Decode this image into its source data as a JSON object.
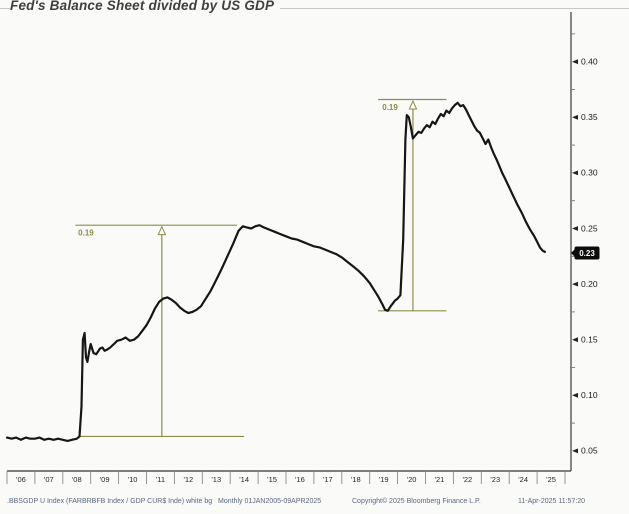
{
  "title": "Fed's Balance Sheet divided by US GDP",
  "footer": {
    "source_line": ".BBSGDP U Index (FARBRBFB Index / GDP CUR$ Inde) white bg",
    "periodicity": "Monthly 01JAN2005-09APR2025",
    "copyright": "Copyright© 2025 Bloomberg Finance L.P.",
    "timestamp": "11-Apr-2025 11:57:20"
  },
  "colors": {
    "background": "#fafaf8",
    "curve": "#161616",
    "annotation": "#8e8e4a",
    "axis": "#555555",
    "separator": "#8a8a8a",
    "x_label": "#1c2430",
    "y_label": "#1a1a1a",
    "badge_bg": "#0b0b0b",
    "badge_text": "#ffffff",
    "footer_text": "#5a6880"
  },
  "chart_data": {
    "type": "line",
    "title": "Fed's Balance Sheet divided by US GDP",
    "xlabel": "",
    "ylabel": "",
    "grid": false,
    "legend": "none",
    "x_axis": {
      "labels": [
        "'06",
        "'07",
        "'08",
        "'09",
        "'10",
        "'11",
        "'12",
        "'13",
        "'14",
        "'15",
        "'16",
        "'17",
        "'18",
        "'19",
        "'20",
        "'21",
        "'22",
        "'23",
        "'24",
        "'25"
      ],
      "start_year": 2006,
      "end_year": 2026
    },
    "y_axis": {
      "side": "right",
      "range": [
        0.04,
        0.43
      ],
      "major_ticks": [
        0.4,
        0.35,
        0.3,
        0.25,
        0.2,
        0.15,
        0.1,
        0.05
      ],
      "major_tick_labels": [
        "0.40",
        "0.35",
        "0.30",
        "0.25",
        "0.20",
        "0.15",
        "0.10",
        "0.05"
      ],
      "minor_ticks": [
        0.425,
        0.375,
        0.325,
        0.275,
        0.225,
        0.175,
        0.125,
        0.075
      ]
    },
    "last_value": {
      "label": "0.23",
      "value": 0.228
    },
    "series": [
      {
        "name": ".BBSGDP U Index (FARBRBFB Index / GDP CUR$ Index)",
        "points": [
          [
            2006.0,
            0.062
          ],
          [
            2006.17,
            0.061
          ],
          [
            2006.33,
            0.062
          ],
          [
            2006.5,
            0.06
          ],
          [
            2006.67,
            0.062
          ],
          [
            2006.83,
            0.061
          ],
          [
            2007.0,
            0.061
          ],
          [
            2007.17,
            0.062
          ],
          [
            2007.33,
            0.06
          ],
          [
            2007.5,
            0.061
          ],
          [
            2007.67,
            0.06
          ],
          [
            2007.83,
            0.061
          ],
          [
            2008.0,
            0.06
          ],
          [
            2008.17,
            0.059
          ],
          [
            2008.33,
            0.06
          ],
          [
            2008.5,
            0.061
          ],
          [
            2008.6,
            0.063
          ],
          [
            2008.67,
            0.09
          ],
          [
            2008.72,
            0.15
          ],
          [
            2008.78,
            0.156
          ],
          [
            2008.83,
            0.134
          ],
          [
            2008.88,
            0.13
          ],
          [
            2008.95,
            0.14
          ],
          [
            2009.0,
            0.146
          ],
          [
            2009.1,
            0.138
          ],
          [
            2009.2,
            0.137
          ],
          [
            2009.33,
            0.142
          ],
          [
            2009.42,
            0.143
          ],
          [
            2009.5,
            0.14
          ],
          [
            2009.58,
            0.141
          ],
          [
            2009.7,
            0.143
          ],
          [
            2009.83,
            0.146
          ],
          [
            2009.95,
            0.149
          ],
          [
            2010.1,
            0.15
          ],
          [
            2010.25,
            0.152
          ],
          [
            2010.4,
            0.149
          ],
          [
            2010.55,
            0.15
          ],
          [
            2010.7,
            0.153
          ],
          [
            2010.85,
            0.158
          ],
          [
            2011.0,
            0.163
          ],
          [
            2011.15,
            0.17
          ],
          [
            2011.3,
            0.178
          ],
          [
            2011.45,
            0.184
          ],
          [
            2011.6,
            0.187
          ],
          [
            2011.75,
            0.188
          ],
          [
            2011.9,
            0.186
          ],
          [
            2012.05,
            0.183
          ],
          [
            2012.2,
            0.179
          ],
          [
            2012.35,
            0.176
          ],
          [
            2012.5,
            0.174
          ],
          [
            2012.65,
            0.175
          ],
          [
            2012.8,
            0.177
          ],
          [
            2012.95,
            0.18
          ],
          [
            2013.1,
            0.186
          ],
          [
            2013.3,
            0.194
          ],
          [
            2013.5,
            0.204
          ],
          [
            2013.7,
            0.214
          ],
          [
            2013.9,
            0.225
          ],
          [
            2014.1,
            0.236
          ],
          [
            2014.3,
            0.248
          ],
          [
            2014.45,
            0.252
          ],
          [
            2014.6,
            0.251
          ],
          [
            2014.75,
            0.25
          ],
          [
            2014.9,
            0.252
          ],
          [
            2015.05,
            0.253
          ],
          [
            2015.2,
            0.251
          ],
          [
            2015.4,
            0.249
          ],
          [
            2015.6,
            0.247
          ],
          [
            2015.8,
            0.245
          ],
          [
            2016.0,
            0.243
          ],
          [
            2016.2,
            0.241
          ],
          [
            2016.4,
            0.24
          ],
          [
            2016.6,
            0.238
          ],
          [
            2016.8,
            0.236
          ],
          [
            2017.0,
            0.234
          ],
          [
            2017.2,
            0.233
          ],
          [
            2017.4,
            0.231
          ],
          [
            2017.6,
            0.229
          ],
          [
            2017.8,
            0.227
          ],
          [
            2018.0,
            0.224
          ],
          [
            2018.2,
            0.22
          ],
          [
            2018.4,
            0.216
          ],
          [
            2018.6,
            0.212
          ],
          [
            2018.8,
            0.207
          ],
          [
            2019.0,
            0.201
          ],
          [
            2019.15,
            0.195
          ],
          [
            2019.3,
            0.189
          ],
          [
            2019.45,
            0.182
          ],
          [
            2019.55,
            0.177
          ],
          [
            2019.65,
            0.176
          ],
          [
            2019.75,
            0.18
          ],
          [
            2019.9,
            0.185
          ],
          [
            2020.0,
            0.187
          ],
          [
            2020.1,
            0.19
          ],
          [
            2020.2,
            0.24
          ],
          [
            2020.28,
            0.33
          ],
          [
            2020.33,
            0.352
          ],
          [
            2020.4,
            0.35
          ],
          [
            2020.47,
            0.342
          ],
          [
            2020.55,
            0.331
          ],
          [
            2020.65,
            0.334
          ],
          [
            2020.75,
            0.337
          ],
          [
            2020.85,
            0.336
          ],
          [
            2020.95,
            0.34
          ],
          [
            2021.05,
            0.343
          ],
          [
            2021.15,
            0.341
          ],
          [
            2021.25,
            0.346
          ],
          [
            2021.35,
            0.344
          ],
          [
            2021.45,
            0.349
          ],
          [
            2021.55,
            0.353
          ],
          [
            2021.65,
            0.351
          ],
          [
            2021.75,
            0.356
          ],
          [
            2021.85,
            0.354
          ],
          [
            2021.95,
            0.358
          ],
          [
            2022.05,
            0.361
          ],
          [
            2022.15,
            0.363
          ],
          [
            2022.25,
            0.36
          ],
          [
            2022.35,
            0.361
          ],
          [
            2022.45,
            0.357
          ],
          [
            2022.55,
            0.352
          ],
          [
            2022.65,
            0.347
          ],
          [
            2022.75,
            0.342
          ],
          [
            2022.85,
            0.338
          ],
          [
            2022.95,
            0.336
          ],
          [
            2023.05,
            0.331
          ],
          [
            2023.15,
            0.326
          ],
          [
            2023.25,
            0.33
          ],
          [
            2023.35,
            0.323
          ],
          [
            2023.45,
            0.317
          ],
          [
            2023.55,
            0.312
          ],
          [
            2023.65,
            0.306
          ],
          [
            2023.75,
            0.3
          ],
          [
            2023.85,
            0.295
          ],
          [
            2024.0,
            0.287
          ],
          [
            2024.15,
            0.279
          ],
          [
            2024.3,
            0.271
          ],
          [
            2024.45,
            0.264
          ],
          [
            2024.6,
            0.256
          ],
          [
            2024.75,
            0.249
          ],
          [
            2024.9,
            0.243
          ],
          [
            2025.0,
            0.238
          ],
          [
            2025.1,
            0.233
          ],
          [
            2025.2,
            0.23
          ],
          [
            2025.28,
            0.229
          ]
        ]
      }
    ],
    "annotations": [
      {
        "label": "0.19",
        "delta": 0.19,
        "arrow_x_year": 2011.55,
        "value_from": 0.063,
        "value_to": 0.253,
        "top_line_years": [
          2008.45,
          2014.25
        ],
        "bottom_line_years": [
          2008.6,
          2014.5
        ],
        "label_year": 2008.55
      },
      {
        "label": "0.19",
        "delta": 0.19,
        "arrow_x_year": 2020.55,
        "value_from": 0.176,
        "value_to": 0.366,
        "top_line_years": [
          2019.3,
          2021.75
        ],
        "bottom_line_years": [
          2019.3,
          2021.75
        ],
        "label_year": 2019.45
      }
    ]
  }
}
